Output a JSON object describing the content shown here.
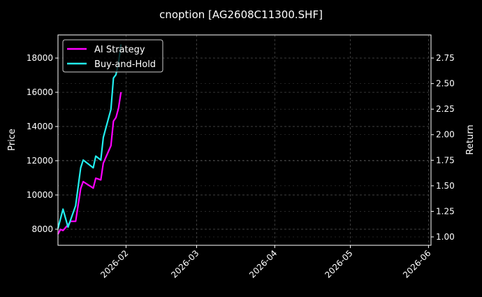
{
  "chart_data": {
    "type": "line",
    "title": "cnoption [AG2608C11300.SHF]",
    "ylabel": "Price",
    "ylabel_right": "Return",
    "xlim": [
      "2026-01-05",
      "2026-06-02"
    ],
    "ylim": [
      7060,
      19350
    ],
    "ylim_right": [
      0.918,
      2.976
    ],
    "xticks": [
      "2026-02",
      "2026-03",
      "2026-04",
      "2026-05",
      "2026-06"
    ],
    "xtick_dates": [
      "2026-02-01",
      "2026-03-01",
      "2026-04-01",
      "2026-05-01",
      "2026-06-01"
    ],
    "yticks": [
      8000,
      10000,
      12000,
      14000,
      16000,
      18000
    ],
    "yticks_right": [
      "1.00",
      "1.25",
      "1.50",
      "1.75",
      "2.00",
      "2.25",
      "2.50",
      "2.75"
    ],
    "grid": true,
    "legend_position": "top-left",
    "series": [
      {
        "name": "AI Strategy",
        "color": "#ff00ff",
        "x": [
          "2026-01-05",
          "2026-01-06",
          "2026-01-07",
          "2026-01-09",
          "2026-01-10",
          "2026-01-12",
          "2026-01-14",
          "2026-01-15",
          "2026-01-19",
          "2026-01-20",
          "2026-01-22",
          "2026-01-23",
          "2026-01-26",
          "2026-01-27",
          "2026-01-28",
          "2026-01-29",
          "2026-01-30"
        ],
        "values": [
          7710,
          7990,
          7920,
          8260,
          8460,
          8460,
          10370,
          10780,
          10400,
          10980,
          10880,
          11860,
          12880,
          14310,
          14520,
          15060,
          16010
        ]
      },
      {
        "name": "Buy-and-Hold",
        "color": "#22eeee",
        "x": [
          "2026-01-05",
          "2026-01-07",
          "2026-01-09",
          "2026-01-12",
          "2026-01-14",
          "2026-01-15",
          "2026-01-19",
          "2026-01-20",
          "2026-01-22",
          "2026-01-23",
          "2026-01-26",
          "2026-01-27",
          "2026-01-28",
          "2026-01-29",
          "2026-01-30"
        ],
        "values": [
          8050,
          9170,
          8120,
          9380,
          11590,
          12040,
          11590,
          12270,
          12040,
          13360,
          15000,
          16830,
          17030,
          17710,
          18800
        ]
      }
    ]
  }
}
